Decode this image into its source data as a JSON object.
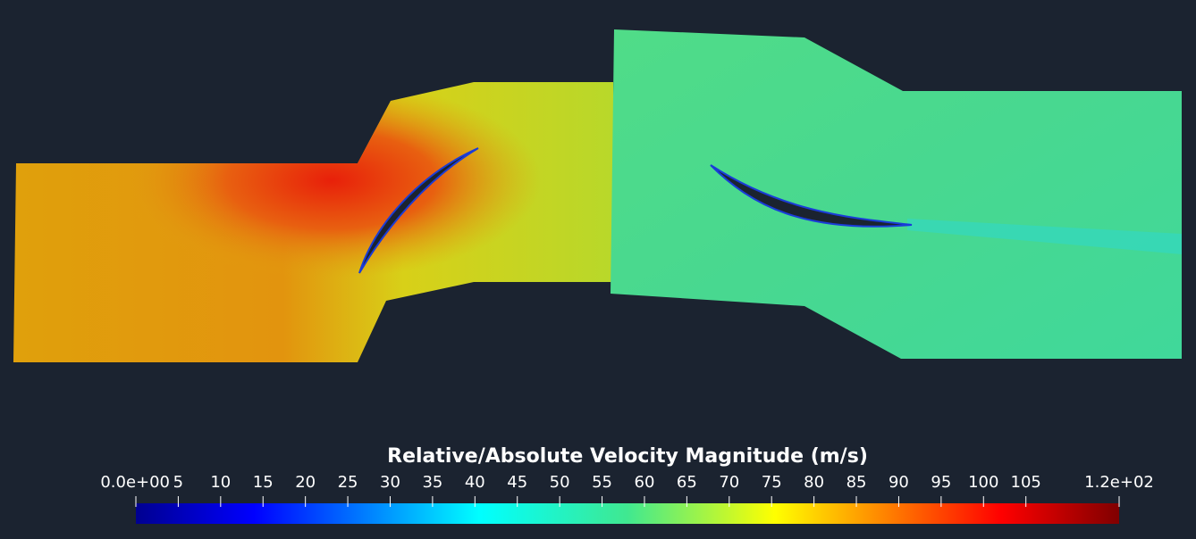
{
  "colorbar": {
    "title": "Relative/Absolute Velocity Magnitude (m/s)",
    "range": [
      0,
      116
    ],
    "ticks": [
      {
        "value": 0,
        "label": "0.0e+00"
      },
      5,
      10,
      15,
      20,
      25,
      30,
      35,
      40,
      45,
      50,
      55,
      60,
      65,
      70,
      75,
      80,
      85,
      90,
      95,
      100,
      105,
      {
        "value": 116,
        "label": "1.2e+02"
      }
    ]
  }
}
